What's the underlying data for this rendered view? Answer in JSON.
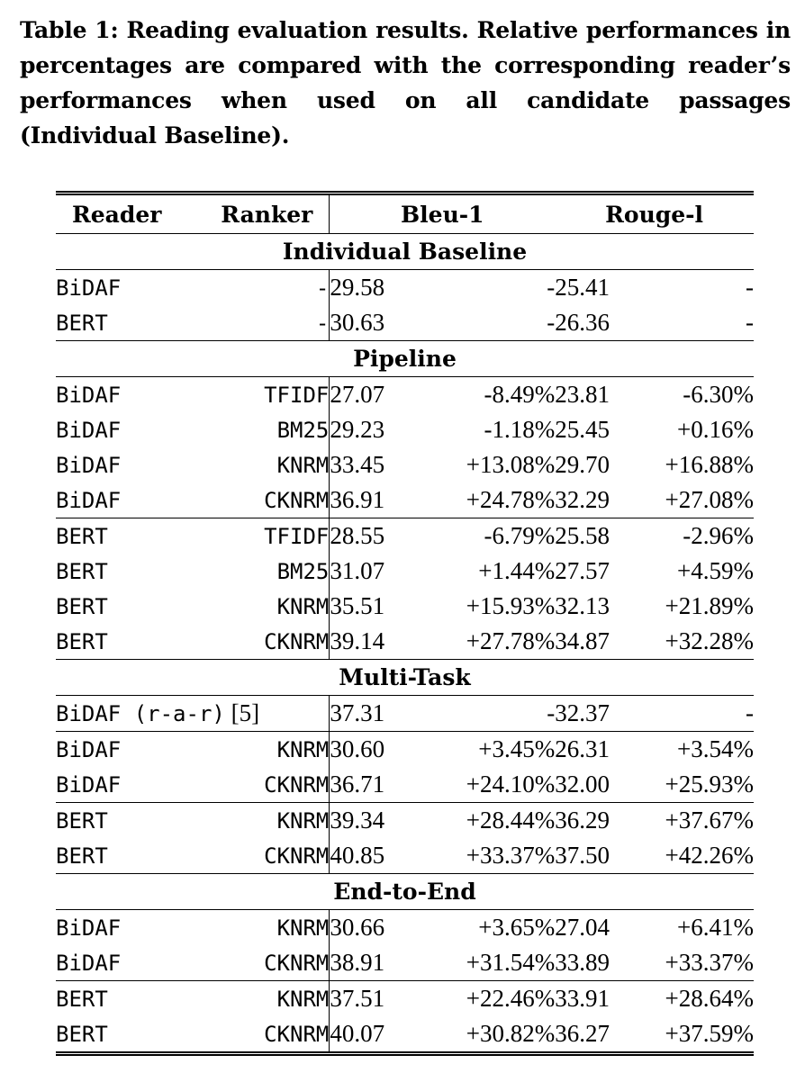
{
  "caption": "Table 1: Reading evaluation results. Relative performances in percentages are compared with the corresponding reader’s performances when used on all candidate passages (Individual Baseline).",
  "headers": {
    "reader": "Reader",
    "ranker": "Ranker",
    "bleu": "Bleu-1",
    "rouge": "Rouge-l"
  },
  "sections": [
    {
      "title": "Individual Baseline",
      "rows": [
        {
          "reader": "BiDAF",
          "ranker": "-",
          "bleu": "29.58",
          "bleu_rel": "-",
          "rouge": "25.41",
          "rouge_rel": "-"
        },
        {
          "reader": "BERT",
          "ranker": "-",
          "bleu": "30.63",
          "bleu_rel": "-",
          "rouge": "26.36",
          "rouge_rel": "-"
        }
      ]
    },
    {
      "title": "Pipeline",
      "rows": [
        {
          "reader": "BiDAF",
          "ranker": "TFIDF",
          "bleu": "27.07",
          "bleu_rel": "-8.49%",
          "rouge": "23.81",
          "rouge_rel": "-6.30%"
        },
        {
          "reader": "BiDAF",
          "ranker": "BM25",
          "bleu": "29.23",
          "bleu_rel": "-1.18%",
          "rouge": "25.45",
          "rouge_rel": "+0.16%"
        },
        {
          "reader": "BiDAF",
          "ranker": "KNRM",
          "bleu": "33.45",
          "bleu_rel": "+13.08%",
          "rouge": "29.70",
          "rouge_rel": "+16.88%"
        },
        {
          "reader": "BiDAF",
          "ranker": "CKNRM",
          "bleu": "36.91",
          "bleu_rel": "+24.78%",
          "rouge": "32.29",
          "rouge_rel": "+27.08%"
        },
        {
          "reader": "BERT",
          "ranker": "TFIDF",
          "bleu": "28.55",
          "bleu_rel": "-6.79%",
          "rouge": "25.58",
          "rouge_rel": "-2.96%"
        },
        {
          "reader": "BERT",
          "ranker": "BM25",
          "bleu": "31.07",
          "bleu_rel": "+1.44%",
          "rouge": "27.57",
          "rouge_rel": "+4.59%"
        },
        {
          "reader": "BERT",
          "ranker": "KNRM",
          "bleu": "35.51",
          "bleu_rel": "+15.93%",
          "rouge": "32.13",
          "rouge_rel": "+21.89%"
        },
        {
          "reader": "BERT",
          "ranker": "CKNRM",
          "bleu": "39.14",
          "bleu_rel": "+27.78%",
          "rouge": "34.87",
          "rouge_rel": "+32.28%"
        }
      ]
    },
    {
      "title": "Multi-Task",
      "rows": [
        {
          "reader_mono": "BiDAF (r-a-r)",
          "reader_ref": "[5]",
          "bleu": "37.31",
          "bleu_rel": "-",
          "rouge": "32.37",
          "rouge_rel": "-"
        },
        {
          "reader": "BiDAF",
          "ranker": "KNRM",
          "bleu": "30.60",
          "bleu_rel": "+3.45%",
          "rouge": "26.31",
          "rouge_rel": "+3.54%"
        },
        {
          "reader": "BiDAF",
          "ranker": "CKNRM",
          "bleu": "36.71",
          "bleu_rel": "+24.10%",
          "rouge": "32.00",
          "rouge_rel": "+25.93%"
        },
        {
          "reader": "BERT",
          "ranker": "KNRM",
          "bleu": "39.34",
          "bleu_rel": "+28.44%",
          "rouge": "36.29",
          "rouge_rel": "+37.67%"
        },
        {
          "reader": "BERT",
          "ranker": "CKNRM",
          "bleu": "40.85",
          "bleu_rel": "+33.37%",
          "rouge": "37.50",
          "rouge_rel": "+42.26%"
        }
      ]
    },
    {
      "title": "End-to-End",
      "rows": [
        {
          "reader": "BiDAF",
          "ranker": "KNRM",
          "bleu": "30.66",
          "bleu_rel": "+3.65%",
          "rouge": "27.04",
          "rouge_rel": "+6.41%"
        },
        {
          "reader": "BiDAF",
          "ranker": "CKNRM",
          "bleu": "38.91",
          "bleu_rel": "+31.54%",
          "rouge": "33.89",
          "rouge_rel": "+33.37%"
        },
        {
          "reader": "BERT",
          "ranker": "KNRM",
          "bleu": "37.51",
          "bleu_rel": "+22.46%",
          "rouge": "33.91",
          "rouge_rel": "+28.64%"
        },
        {
          "reader": "BERT",
          "ranker": "CKNRM",
          "bleu": "40.07",
          "bleu_rel": "+30.82%",
          "rouge": "36.27",
          "rouge_rel": "+37.59%"
        }
      ]
    }
  ]
}
